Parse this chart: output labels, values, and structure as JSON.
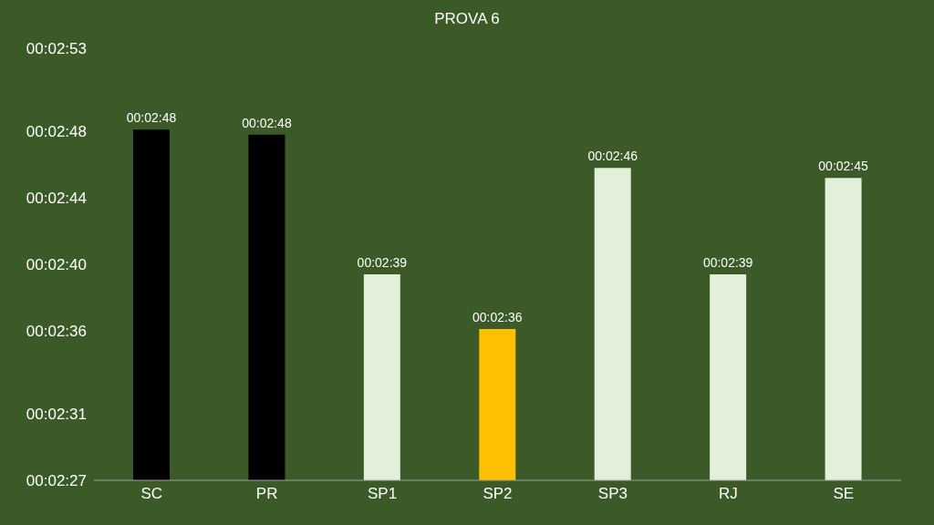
{
  "chart_data": {
    "type": "bar",
    "title": "PROVA 6",
    "categories": [
      "SC",
      "PR",
      "SP1",
      "SP2",
      "SP3",
      "RJ",
      "SE"
    ],
    "values": [
      168.1,
      167.8,
      159.4,
      156.1,
      165.8,
      159.4,
      165.2
    ],
    "colors": [
      "#000000",
      "#000000",
      "#e2efda",
      "#ffc000",
      "#e2efda",
      "#e2efda",
      "#e2efda"
    ],
    "value_labels": [
      "00:02:48",
      "00:02:48",
      "00:02:39",
      "00:02:36",
      "00:02:46",
      "00:02:39",
      "00:02:45"
    ],
    "ylim": [
      147,
      173
    ],
    "yticks": [
      {
        "value": 147,
        "label": "00:02:27"
      },
      {
        "value": 151,
        "label": "00:02:31"
      },
      {
        "value": 156,
        "label": "00:02:36"
      },
      {
        "value": 160,
        "label": "00:02:40"
      },
      {
        "value": 164,
        "label": "00:02:44"
      },
      {
        "value": 168,
        "label": "00:02:48"
      },
      {
        "value": 173,
        "label": "00:02:53"
      }
    ],
    "grid": false,
    "legend": false
  }
}
